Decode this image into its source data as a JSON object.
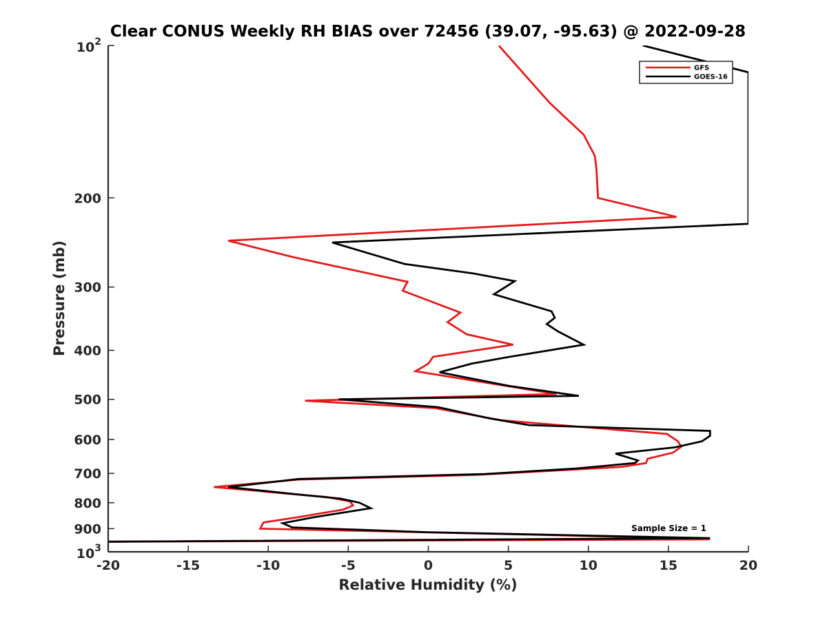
{
  "chart_data": {
    "type": "line",
    "title": "Clear CONUS Weekly RH BIAS over 72456 (39.07, -95.63) @ 2022-09-28",
    "xlabel": "Relative Humidity (%)",
    "ylabel": "Pressure (mb)",
    "xlim": [
      -20,
      20
    ],
    "ylim": [
      100,
      1000
    ],
    "yscale": "log",
    "y_reversed": true,
    "grid": false,
    "legend_position": "top-right",
    "xticks": [
      -20,
      -15,
      -10,
      -5,
      0,
      5,
      10,
      15,
      20
    ],
    "xtick_labels": [
      "-20",
      "-15",
      "-10",
      "-5",
      "0",
      "5",
      "10",
      "15",
      "20"
    ],
    "yticks": [
      200,
      300,
      400,
      500,
      600,
      700,
      800,
      900
    ],
    "ytick_labels": [
      "200",
      "300",
      "400",
      "500",
      "600",
      "700",
      "800",
      "900"
    ],
    "ytick_exp_labels": [
      {
        "value": 100,
        "base": "10",
        "exp": "2"
      },
      {
        "value": 1000,
        "base": "10",
        "exp": "3"
      }
    ],
    "annotation": "Sample Size = 1",
    "series": [
      {
        "name": "GFS",
        "color": "#e41a1c",
        "points": [
          [
            4.4,
            100
          ],
          [
            6.1,
            115
          ],
          [
            7.6,
            130
          ],
          [
            9.7,
            150
          ],
          [
            10.4,
            165
          ],
          [
            10.5,
            175
          ],
          [
            10.6,
            200
          ],
          [
            15.5,
            218
          ],
          [
            -12.5,
            243
          ],
          [
            -8.4,
            262
          ],
          [
            -1.3,
            293
          ],
          [
            -1.6,
            305
          ],
          [
            2.0,
            337
          ],
          [
            1.2,
            352
          ],
          [
            2.4,
            372
          ],
          [
            5.3,
            390
          ],
          [
            0.3,
            412
          ],
          [
            0.0,
            425
          ],
          [
            -0.8,
            440
          ],
          [
            8.0,
            488
          ],
          [
            -7.7,
            503
          ],
          [
            0.4,
            520
          ],
          [
            4.6,
            550
          ],
          [
            14.9,
            585
          ],
          [
            15.6,
            605
          ],
          [
            15.8,
            620
          ],
          [
            15.3,
            637
          ],
          [
            13.7,
            655
          ],
          [
            13.6,
            668
          ],
          [
            12.0,
            680
          ],
          [
            3.0,
            705
          ],
          [
            -8.1,
            720
          ],
          [
            -13.4,
            745
          ],
          [
            -6.3,
            780
          ],
          [
            -4.9,
            795
          ],
          [
            -4.7,
            810
          ],
          [
            -5.3,
            825
          ],
          [
            -8.2,
            855
          ],
          [
            -10.3,
            875
          ],
          [
            -10.5,
            900
          ],
          [
            8.4,
            928
          ],
          [
            17.6,
            945
          ],
          [
            -20.0,
            955
          ]
        ]
      },
      {
        "name": "GOES-16",
        "color": "#000000",
        "points": [
          [
            13.4,
            100
          ],
          [
            20.0,
            113
          ],
          [
            20.0,
            225
          ],
          [
            -6.0,
            245
          ],
          [
            -1.5,
            270
          ],
          [
            2.8,
            282
          ],
          [
            5.4,
            292
          ],
          [
            4.1,
            310
          ],
          [
            7.7,
            335
          ],
          [
            7.9,
            345
          ],
          [
            7.4,
            355
          ],
          [
            8.1,
            367
          ],
          [
            9.7,
            390
          ],
          [
            5.1,
            412
          ],
          [
            2.7,
            425
          ],
          [
            0.7,
            442
          ],
          [
            5.0,
            470
          ],
          [
            9.4,
            492
          ],
          [
            -5.6,
            500
          ],
          [
            0.6,
            518
          ],
          [
            3.8,
            545
          ],
          [
            6.3,
            562
          ],
          [
            17.6,
            577
          ],
          [
            17.6,
            590
          ],
          [
            17.1,
            605
          ],
          [
            15.4,
            622
          ],
          [
            11.7,
            640
          ],
          [
            13.1,
            660
          ],
          [
            12.9,
            668
          ],
          [
            9.2,
            685
          ],
          [
            3.5,
            702
          ],
          [
            -8.1,
            718
          ],
          [
            -12.5,
            745
          ],
          [
            -8.2,
            770
          ],
          [
            -5.5,
            785
          ],
          [
            -4.3,
            800
          ],
          [
            -3.6,
            820
          ],
          [
            -7.2,
            855
          ],
          [
            -9.1,
            878
          ],
          [
            -8.5,
            895
          ],
          [
            0.0,
            915
          ],
          [
            17.6,
            940
          ],
          [
            -20.0,
            955
          ]
        ]
      }
    ]
  }
}
